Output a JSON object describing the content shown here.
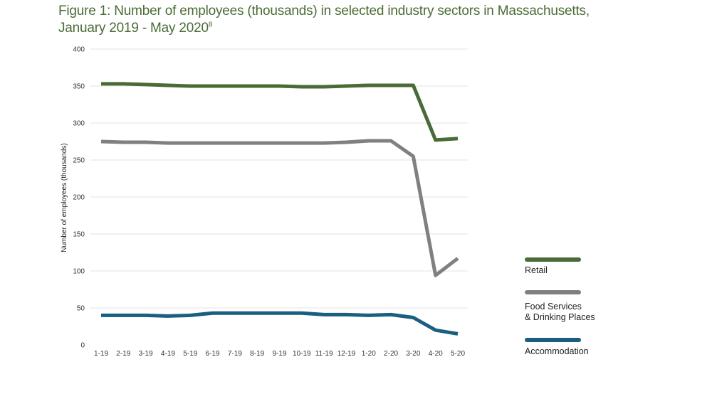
{
  "chart_data": {
    "type": "line",
    "title": "Figure 1: Number of employees (thousands) in selected industry sectors in Massachusetts,",
    "title_line2": "January 2019 - May 2020",
    "title_footnote": "8",
    "ylabel": "Number of employees (thousands)",
    "xlabel": "",
    "ylim": [
      0,
      400
    ],
    "yticks": [
      0,
      50,
      100,
      150,
      200,
      250,
      300,
      350,
      400
    ],
    "ytick_labels": [
      "0",
      "50",
      "100",
      "150",
      "200",
      "250",
      "300",
      "350",
      "400"
    ],
    "categories": [
      "1-19",
      "2-19",
      "3-19",
      "4-19",
      "5-19",
      "6-19",
      "7-19",
      "8-19",
      "9-19",
      "10-19",
      "11-19",
      "12-19",
      "1-20",
      "2-20",
      "3-20",
      "4-20",
      "5-20"
    ],
    "grid": true,
    "legend_position": "right",
    "series": [
      {
        "name": "Retail",
        "color": "#4a6b35",
        "values": [
          353,
          353,
          352,
          351,
          350,
          350,
          350,
          350,
          350,
          349,
          349,
          350,
          351,
          351,
          351,
          277,
          279
        ]
      },
      {
        "name": "Food Services & Drinking Places",
        "name_line1": "Food Services",
        "name_line2": "& Drinking Places",
        "color": "#808080",
        "values": [
          275,
          274,
          274,
          273,
          273,
          273,
          273,
          273,
          273,
          273,
          273,
          274,
          276,
          276,
          255,
          94,
          117
        ]
      },
      {
        "name": "Accommodation",
        "color": "#1a5f80",
        "values": [
          40,
          40,
          40,
          39,
          40,
          43,
          43,
          43,
          43,
          43,
          41,
          41,
          40,
          41,
          37,
          20,
          15
        ]
      }
    ]
  }
}
